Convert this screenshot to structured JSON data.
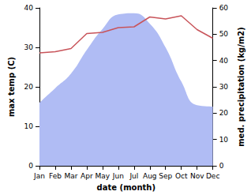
{
  "chart_data": {
    "type": "line",
    "categories": [
      "Jan",
      "Feb",
      "Mar",
      "Apr",
      "May",
      "Jun",
      "Jul",
      "Aug",
      "Sep",
      "Oct",
      "Nov",
      "Dec"
    ],
    "xlabel": "date (month)",
    "ylabel": "max temp (C)",
    "y2label": "med. precipitation (kg/m2)",
    "ylim": [
      0,
      40
    ],
    "yticks": [
      0,
      10,
      20,
      30,
      40
    ],
    "y2lim": [
      0,
      60
    ],
    "y2ticks": [
      0,
      10,
      20,
      30,
      40,
      50,
      60
    ],
    "grid": false,
    "series": [
      {
        "type": "area",
        "axis": "y2",
        "color": "#b0bcf4",
        "values": [
          24,
          29.5,
          35,
          44,
          52,
          57.5,
          58,
          54,
          45,
          32,
          23,
          22.5
        ]
      },
      {
        "type": "line",
        "axis": "y",
        "color": "#c8545a",
        "values": [
          28.6,
          28.9,
          29.7,
          33.5,
          33.8,
          35,
          35.2,
          37.7,
          37.2,
          38,
          34.5,
          32.3
        ]
      }
    ]
  }
}
